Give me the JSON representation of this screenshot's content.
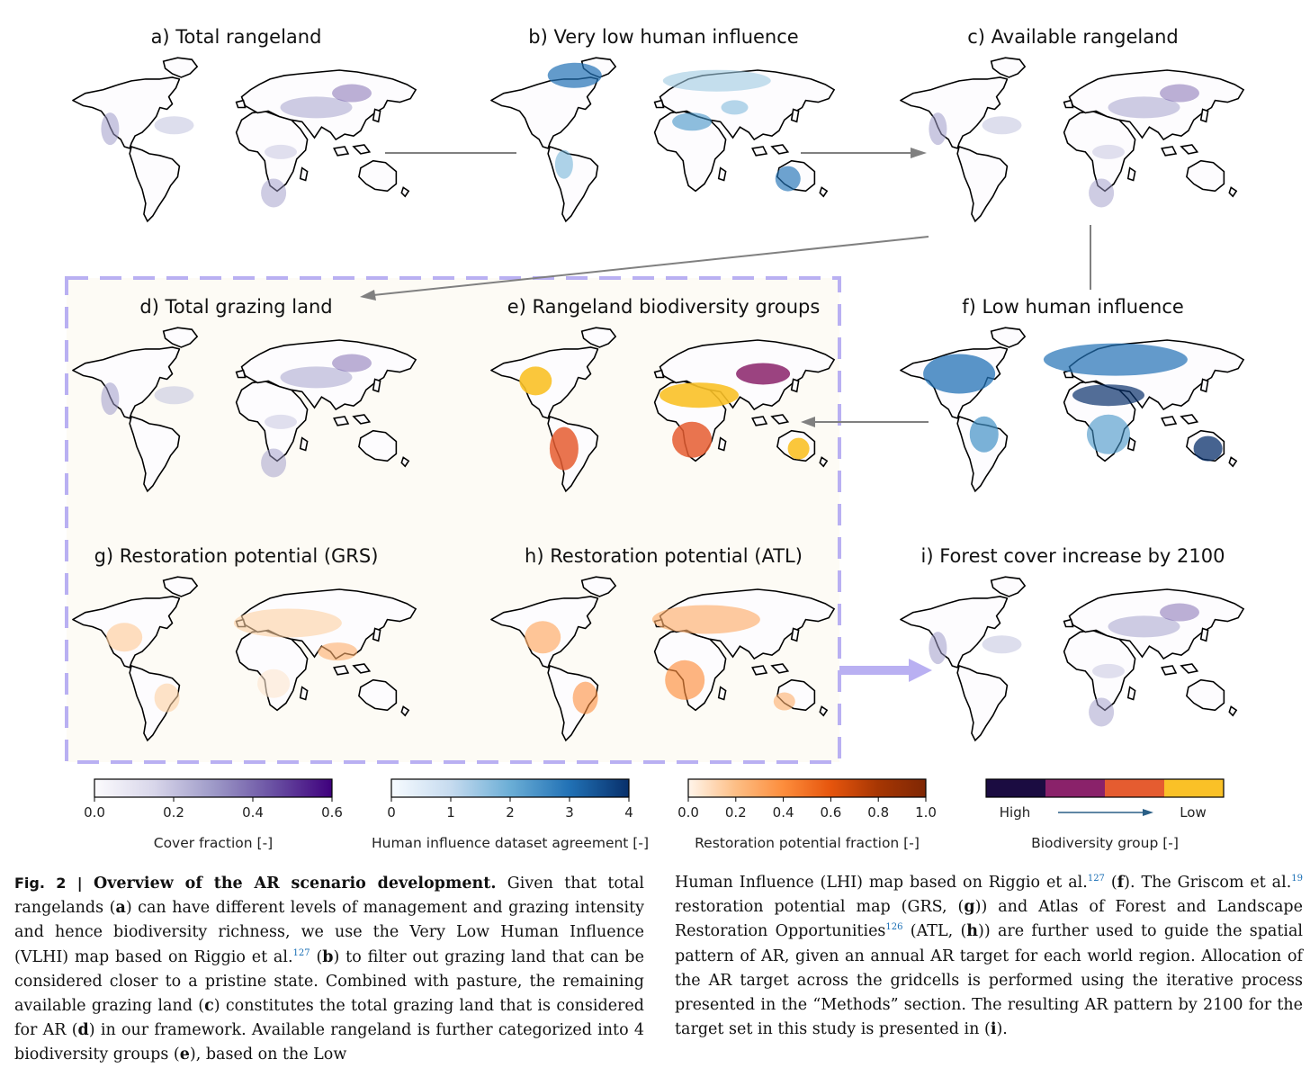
{
  "figure": {
    "panels": [
      {
        "title": "a) Total rangeland",
        "scheme": "purple"
      },
      {
        "title": "b) Very low human influence",
        "scheme": "blue"
      },
      {
        "title": "c) Available rangeland",
        "scheme": "purple"
      },
      {
        "title": "d) Total grazing land",
        "scheme": "purple"
      },
      {
        "title": "e) Rangeland biodiversity groups",
        "scheme": "biodiv"
      },
      {
        "title": "f) Low human influence",
        "scheme": "blue-strong"
      },
      {
        "title": "g) Restoration potential (GRS)",
        "scheme": "orange-light"
      },
      {
        "title": "h) Restoration potential (ATL)",
        "scheme": "orange"
      },
      {
        "title": "i) Forest cover increase by 2100",
        "scheme": "purple"
      }
    ],
    "colorbars": [
      {
        "label": "Cover fraction [-]",
        "ticks": [
          "0.0",
          "0.2",
          "0.4",
          "0.6"
        ],
        "colors": [
          "#fcfbfd",
          "#d8d6ea",
          "#9e9ac8",
          "#6a51a3",
          "#3f007d"
        ]
      },
      {
        "label": "Human influence dataset agreement [-]",
        "ticks": [
          "0",
          "1",
          "2",
          "3",
          "4"
        ],
        "colors": [
          "#f7fbff",
          "#c6dbef",
          "#6baed6",
          "#2171b5",
          "#08306b"
        ]
      },
      {
        "label": "Restoration potential fraction [-]",
        "ticks": [
          "0.0",
          "0.2",
          "0.4",
          "0.6",
          "0.8",
          "1.0"
        ],
        "colors": [
          "#fff5eb",
          "#fdbe85",
          "#fd8d3c",
          "#e6550d",
          "#a63603",
          "#7f2704"
        ]
      },
      {
        "label": "Biodiversity group [-]",
        "ticks": [
          "High",
          "Low"
        ],
        "colors": [
          "#1b0c41",
          "#8a226a",
          "#e55c30",
          "#fac127"
        ]
      }
    ],
    "colors": {
      "dashed_box": "#b9b0f2",
      "box_fill": "#fdfbf5",
      "arrow": "#808080",
      "big_arrow": "#b9b0f2"
    }
  },
  "caption": {
    "fig_label": "Fig. 2 |",
    "heading": "Overview of the AR scenario development.",
    "left": [
      {
        "t": " Given that total rangelands ("
      },
      {
        "b": "a"
      },
      {
        "t": ") can have different levels of management and grazing intensity and hence biodiversity richness, we use the Very Low Human Influence (VLHI) map based on Riggio et al."
      },
      {
        "s": "127"
      },
      {
        "t": " ("
      },
      {
        "b": "b"
      },
      {
        "t": ") to filter out grazing land that can be considered closer to a pristine state. Combined with pasture, the remaining available grazing land ("
      },
      {
        "b": "c"
      },
      {
        "t": ") constitutes the total grazing land that is considered for AR ("
      },
      {
        "b": "d"
      },
      {
        "t": ") in our framework. Available rangeland is further categorized into 4 biodiversity groups ("
      },
      {
        "b": "e"
      },
      {
        "t": "), based on the Low"
      }
    ],
    "right": [
      {
        "t": "Human Influence (LHI) map based on Riggio et al."
      },
      {
        "s": "127"
      },
      {
        "t": " ("
      },
      {
        "b": "f"
      },
      {
        "t": "). The Griscom et al."
      },
      {
        "s": "19"
      },
      {
        "t": " restoration potential map (GRS, ("
      },
      {
        "b": "g"
      },
      {
        "t": ")) and Atlas of Forest and Landscape Restoration Opportunities"
      },
      {
        "s": "126"
      },
      {
        "t": " (ATL, ("
      },
      {
        "b": "h"
      },
      {
        "t": ")) are further used to guide the spatial pattern of AR, given an annual AR target for each world region. Allocation of the AR target across the gridcells is performed using the iterative process presented in the “Methods” section. The resulting AR pattern by 2100 for the target set in this study is presented in ("
      },
      {
        "b": "i"
      },
      {
        "t": ")."
      }
    ]
  }
}
